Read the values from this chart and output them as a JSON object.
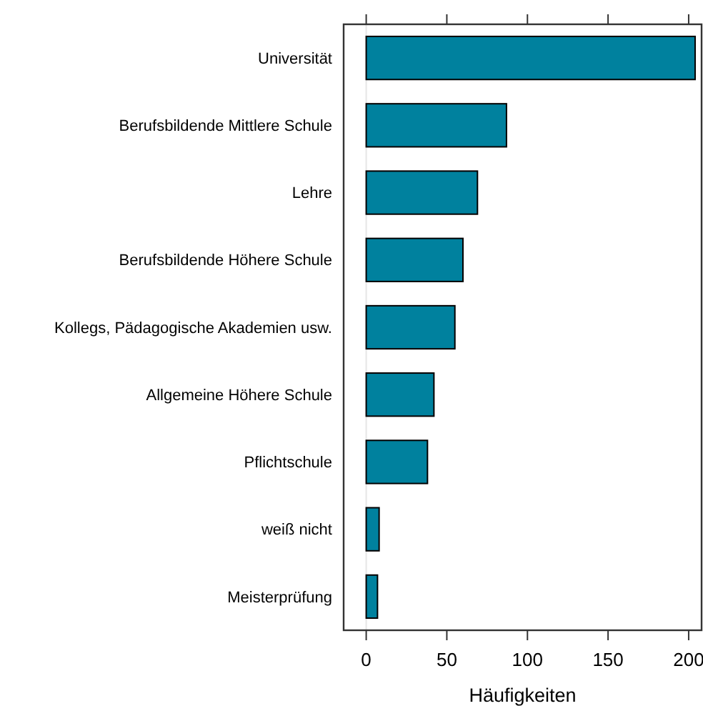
{
  "chart_data": {
    "type": "bar",
    "orientation": "horizontal",
    "xlabel": "Häufigkeiten",
    "categories": [
      "Universität",
      "Berufsbildende Mittlere Schule",
      "Lehre",
      "Berufsbildende Höhere Schule",
      "Kollegs, Pädagogische Akademien usw.",
      "Allgemeine Höhere Schule",
      "Pflichtschule",
      "weiß nicht",
      "Meisterprüfung"
    ],
    "values": [
      204,
      87,
      69,
      60,
      55,
      42,
      38,
      8,
      7
    ],
    "color": "#00819e",
    "xlim": [
      -14,
      208
    ],
    "xticks": [
      0,
      50,
      100,
      150,
      200
    ],
    "ref_lines": [
      {
        "axis": "x",
        "value": 0,
        "color": "#e6e6e6"
      }
    ],
    "grid": false
  }
}
